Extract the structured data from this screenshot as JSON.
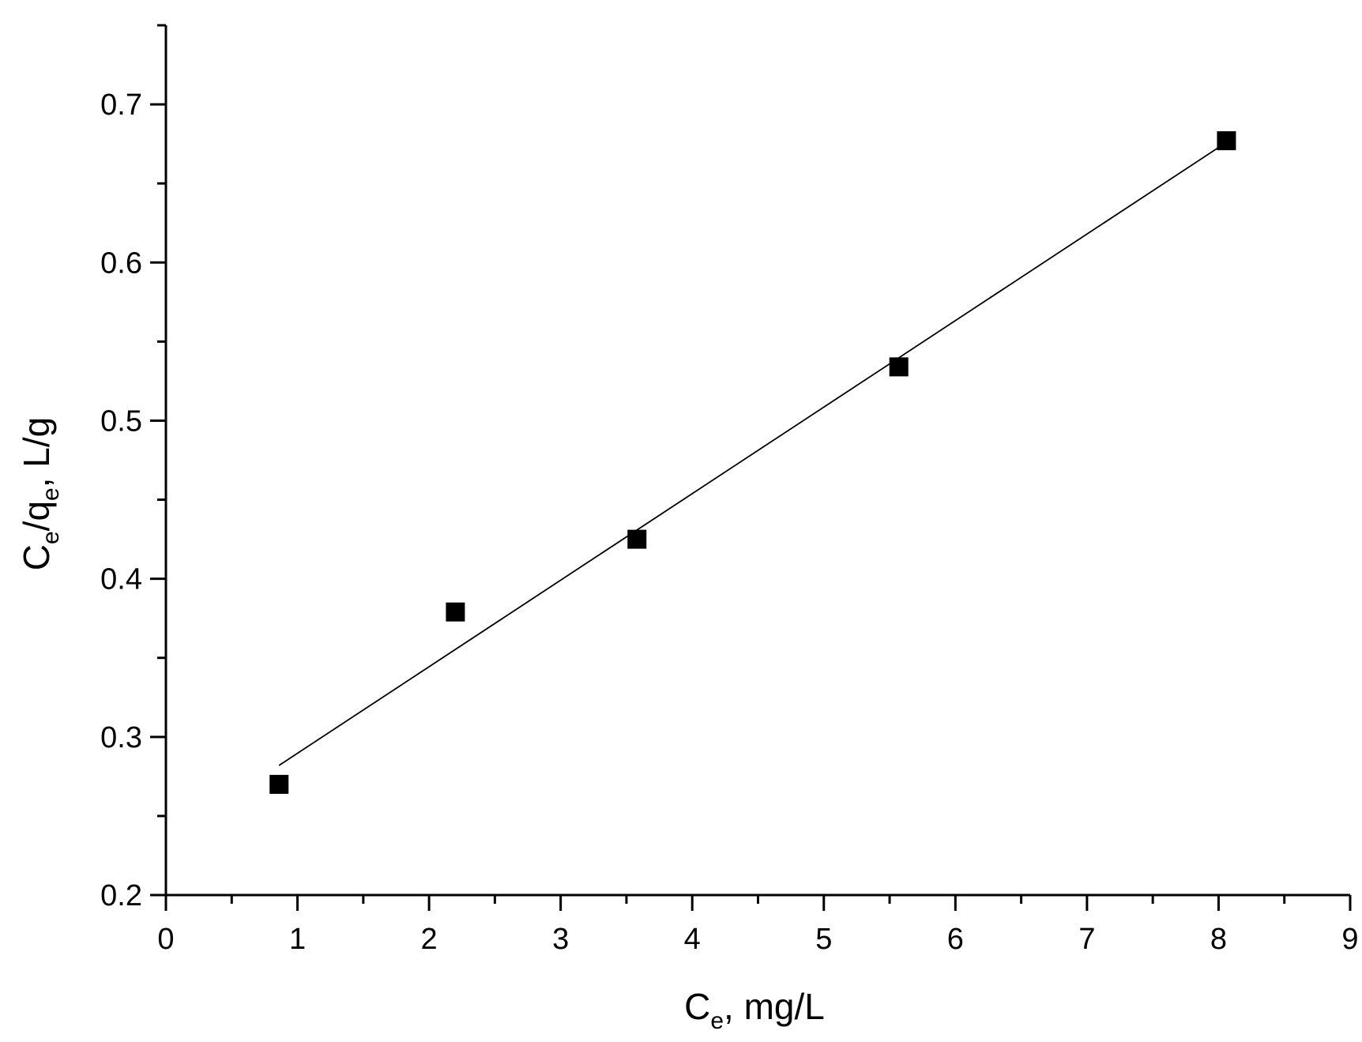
{
  "chart_data": {
    "type": "scatter",
    "title": "",
    "xlabel": {
      "main": "C",
      "sub": "e",
      "rest": ", mg/L"
    },
    "ylabel": {
      "main": "C",
      "sub": "e",
      "mid": "/q",
      "sub2": "e",
      "rest": ", L/g"
    },
    "xlim": [
      0,
      9
    ],
    "ylim": [
      0.2,
      0.75
    ],
    "x_ticks": [
      0,
      1,
      2,
      3,
      4,
      5,
      6,
      7,
      8,
      9
    ],
    "x_tick_labels": [
      "0",
      "1",
      "2",
      "3",
      "4",
      "5",
      "6",
      "7",
      "8",
      "9"
    ],
    "y_ticks": [
      0.2,
      0.3,
      0.4,
      0.5,
      0.6,
      0.7
    ],
    "y_tick_labels": [
      "0.2",
      "0.3",
      "0.4",
      "0.5",
      "0.6",
      "0.7"
    ],
    "grid": false,
    "legend": "none",
    "series": [
      {
        "marker": "square",
        "color": "#000000",
        "x": [
          0.86,
          2.2,
          3.58,
          5.57,
          8.06
        ],
        "y": [
          0.27,
          0.379,
          0.425,
          0.534,
          0.677
        ]
      }
    ],
    "fit_line": {
      "color": "#000000",
      "x": [
        0.86,
        8.06
      ],
      "y": [
        0.282,
        0.676
      ]
    }
  }
}
